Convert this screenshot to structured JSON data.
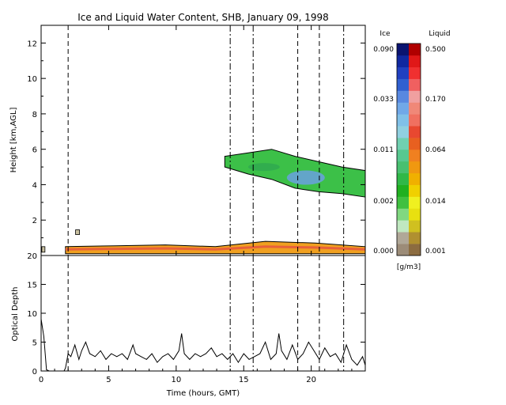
{
  "chart_data": [
    {
      "type": "heatmap",
      "title": "Ice and Liquid Water Content, SHB, January 09, 1998",
      "ylabel": "Height [km,AGL]",
      "xlim": [
        0,
        24
      ],
      "ylim": [
        0,
        13
      ],
      "yticks": [
        2,
        4,
        6,
        8,
        10,
        12
      ],
      "vlines_dashed": [
        2.0,
        19.0,
        20.6
      ],
      "vlines_dashdot": [
        14.0,
        15.7,
        22.4
      ],
      "colorbars": {
        "unit": "[g/m3]",
        "ice": {
          "label": "Ice",
          "ticks": [
            "0.090",
            "0.033",
            "0.011",
            "0.002",
            "0.000"
          ]
        },
        "liquid": {
          "label": "Liquid",
          "ticks": [
            "0.500",
            "0.170",
            "0.064",
            "0.014",
            "0.001"
          ]
        }
      },
      "layers": [
        {
          "name": "liquid",
          "x_range": [
            1.8,
            24
          ],
          "base_km": 0.1,
          "top_km": [
            0.5,
            0.55,
            0.6,
            0.5,
            0.8,
            0.7,
            0.5
          ]
        },
        {
          "name": "ice",
          "x_range": [
            13.6,
            24
          ],
          "top_km": [
            5.6,
            5.8,
            6.0,
            5.6,
            5.3,
            5.0,
            4.8
          ],
          "base_km": [
            5.0,
            4.6,
            4.3,
            3.8,
            3.6,
            3.5,
            3.3
          ]
        }
      ]
    },
    {
      "type": "line",
      "xlabel": "Time (hours, GMT)",
      "ylabel": "Optical Depth",
      "xlim": [
        0,
        24
      ],
      "ylim": [
        0,
        20
      ],
      "xticks": [
        0,
        5,
        10,
        15,
        20
      ],
      "yticks": [
        0,
        5,
        10,
        15,
        20
      ],
      "series": [
        {
          "x": [
            0,
            0.2,
            0.4,
            0.6,
            0.8,
            1.0,
            1.2,
            1.5,
            1.7,
            1.8,
            2.0,
            2.2,
            2.5,
            2.8,
            3.0,
            3.3,
            3.6,
            4.0,
            4.4,
            4.8,
            5.2,
            5.6,
            6.0,
            6.4,
            6.8,
            7.0,
            7.4,
            7.8,
            8.2,
            8.6,
            9.0,
            9.4,
            9.8,
            10.2,
            10.4,
            10.6,
            11.0,
            11.4,
            11.8,
            12.2,
            12.6,
            13.0,
            13.4,
            13.8,
            14.2,
            14.6,
            15.0,
            15.4,
            15.8,
            16.2,
            16.6,
            17.0,
            17.4,
            17.6,
            17.8,
            18.2,
            18.6,
            19.0,
            19.4,
            19.8,
            20.2,
            20.6,
            21.0,
            21.4,
            21.8,
            22.2,
            22.6,
            23.0,
            23.4,
            23.8,
            24.0
          ],
          "y": [
            9.0,
            6.0,
            0.2,
            0.0,
            0.0,
            0.0,
            0.0,
            0.0,
            0.0,
            0.5,
            3.0,
            2.5,
            4.5,
            2.0,
            3.5,
            5.0,
            3.0,
            2.5,
            3.5,
            2.0,
            3.0,
            2.5,
            3.0,
            2.0,
            4.5,
            3.0,
            2.5,
            2.0,
            3.0,
            1.5,
            2.5,
            3.0,
            2.0,
            3.5,
            6.5,
            3.0,
            2.0,
            3.0,
            2.5,
            3.0,
            4.0,
            2.5,
            3.0,
            2.0,
            3.0,
            1.5,
            3.0,
            2.0,
            2.5,
            3.0,
            5.0,
            2.0,
            3.0,
            6.5,
            3.5,
            2.0,
            4.5,
            2.0,
            3.0,
            5.0,
            3.5,
            2.0,
            4.0,
            2.5,
            3.0,
            1.5,
            4.5,
            2.0,
            1.0,
            2.5,
            1.0
          ]
        }
      ],
      "vlines_dashed": [
        2.0,
        19.0,
        20.6
      ],
      "vlines_dashdot": [
        14.0,
        15.7,
        22.4
      ]
    }
  ]
}
